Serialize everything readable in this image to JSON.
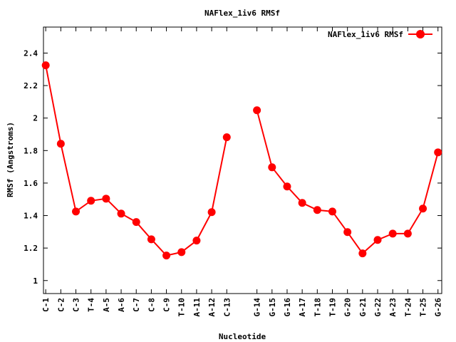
{
  "chart_data": {
    "type": "line",
    "title": "NAFlex_1iv6 RMSf",
    "xlabel": "Nucleotide",
    "ylabel": "RMSf (Angstroms)",
    "legend": {
      "label": "NAFlex_1iv6 RMSf",
      "placement": "top-right"
    },
    "ylim": [
      0.92,
      2.56
    ],
    "yticks": [
      1,
      1.2,
      1.4,
      1.6,
      1.8,
      2,
      2.2,
      2.4
    ],
    "ytick_labels": [
      "1",
      "1.2",
      "1.4",
      "1.6",
      "1.8",
      "2",
      "2.2",
      "2.4"
    ],
    "xlim": [
      0.85,
      27.25
    ],
    "grid": false,
    "series_color": "#ff0000",
    "segments": [
      {
        "categories": [
          "C-1",
          "C-2",
          "C-3",
          "T-4",
          "A-5",
          "A-6",
          "C-7",
          "C-8",
          "C-9",
          "T-10",
          "A-11",
          "A-12",
          "C-13"
        ],
        "x": [
          1,
          2,
          3,
          4,
          5,
          6,
          7,
          8,
          9,
          10,
          11,
          12,
          13
        ],
        "values": [
          2.325,
          1.842,
          1.425,
          1.491,
          1.504,
          1.412,
          1.36,
          1.254,
          1.154,
          1.175,
          1.246,
          1.421,
          1.882
        ]
      },
      {
        "categories": [
          "G-14",
          "G-15",
          "G-16",
          "A-17",
          "T-18",
          "T-19",
          "G-20",
          "G-21",
          "G-22",
          "A-23",
          "T-24",
          "T-25",
          "G-26"
        ],
        "x": [
          15,
          16,
          17,
          18,
          19,
          20,
          21,
          22,
          23,
          24,
          25,
          26,
          27
        ],
        "values": [
          2.048,
          1.697,
          1.579,
          1.478,
          1.434,
          1.425,
          1.298,
          1.167,
          1.25,
          1.289,
          1.289,
          1.443,
          1.789
        ]
      }
    ]
  }
}
